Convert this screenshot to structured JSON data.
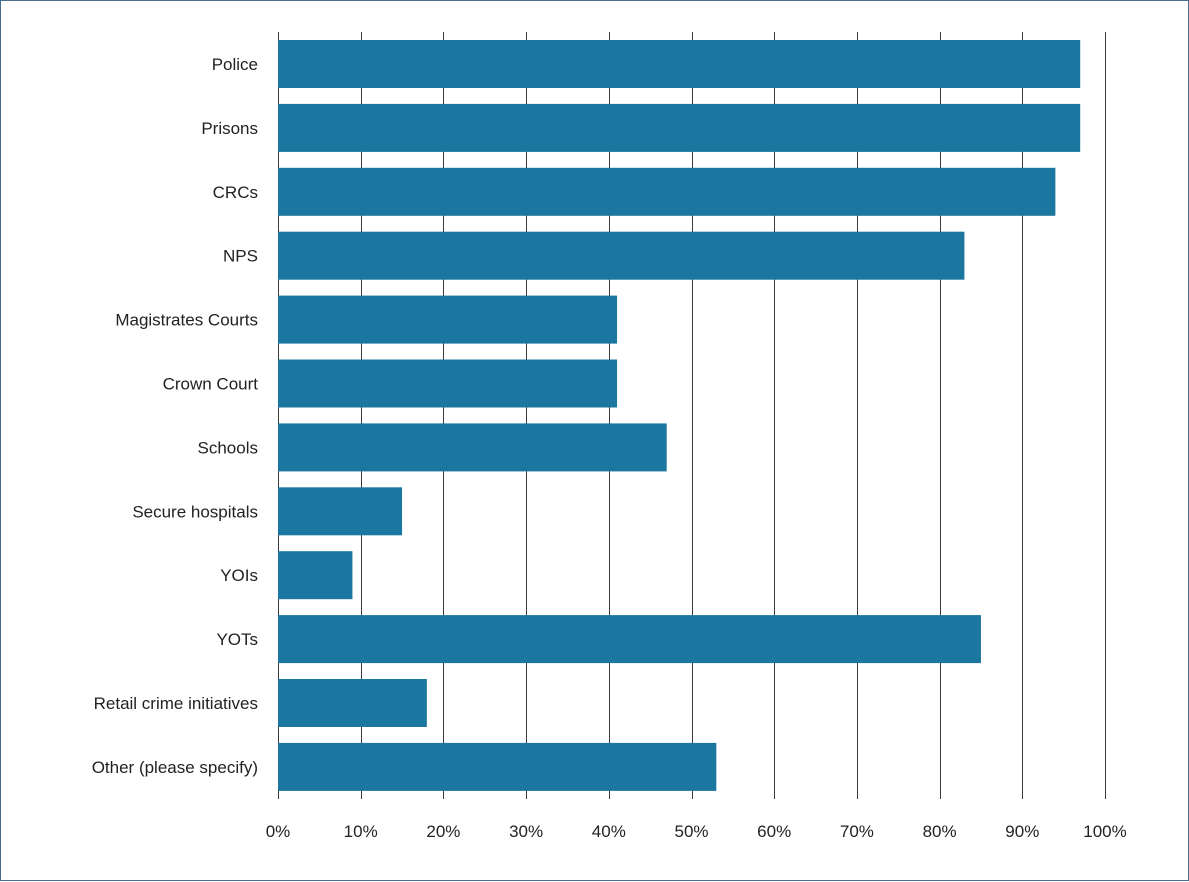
{
  "chart_data": {
    "type": "bar",
    "orientation": "horizontal",
    "title": "",
    "xlabel": "",
    "ylabel": "",
    "xlim": [
      0,
      100
    ],
    "grid": true,
    "bar_color": "#1b77a0",
    "categories": [
      "Police",
      "Prisons",
      "CRCs",
      "NPS",
      "Magistrates Courts",
      "Crown Court",
      "Schools",
      "Secure hospitals",
      "YOIs",
      "YOTs",
      "Retail crime initiatives",
      "Other (please specify)"
    ],
    "values": [
      97,
      97,
      94,
      83,
      41,
      41,
      47,
      15,
      9,
      85,
      18,
      53
    ],
    "x_ticks": [
      "0%",
      "10%",
      "20%",
      "30%",
      "40%",
      "50%",
      "60%",
      "70%",
      "80%",
      "90%",
      "100%"
    ],
    "x_tick_values": [
      0,
      10,
      20,
      30,
      40,
      50,
      60,
      70,
      80,
      90,
      100
    ]
  }
}
